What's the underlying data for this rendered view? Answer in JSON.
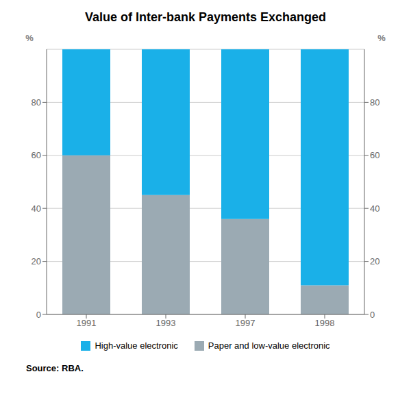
{
  "chart_data": {
    "type": "bar",
    "title": "Value of Inter-bank Payments Exchanged",
    "categories": [
      "1991",
      "1993",
      "1997",
      "1998"
    ],
    "series": [
      {
        "name": "Paper and low-value electronic",
        "color": "#9baab3",
        "values": [
          60,
          45,
          36,
          11
        ]
      },
      {
        "name": "High-value electronic",
        "color": "#1ab0e8",
        "values": [
          40,
          55,
          64,
          89
        ]
      }
    ],
    "stacked": true,
    "ylim": [
      0,
      100
    ],
    "yticks": [
      0,
      20,
      40,
      60,
      80
    ],
    "y2lim": [
      0,
      100
    ],
    "y2ticks": [
      0,
      20,
      40,
      60,
      80
    ],
    "ylabel": "%",
    "y2label": "%",
    "source": "Source: RBA.",
    "grid": true,
    "legend": "bottom"
  }
}
